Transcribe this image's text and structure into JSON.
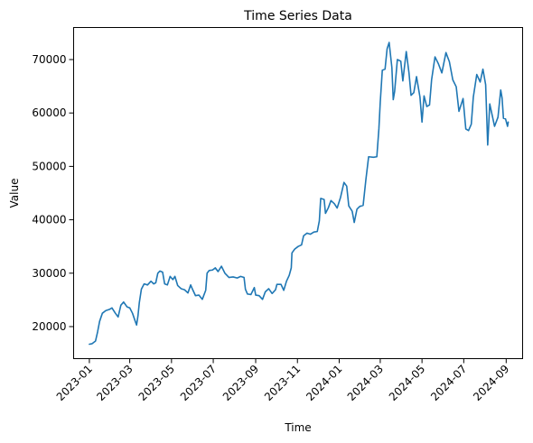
{
  "chart_data": {
    "type": "line",
    "title": "Time Series Data",
    "xlabel": "Time",
    "ylabel": "Value",
    "xlim": [
      "2022-12-09",
      "2024-09-25"
    ],
    "ylim": [
      14000,
      76000
    ],
    "x_ticks": [
      "2023-01",
      "2023-03",
      "2023-05",
      "2023-07",
      "2023-09",
      "2023-11",
      "2024-01",
      "2024-03",
      "2024-05",
      "2024-07",
      "2024-09"
    ],
    "y_ticks": [
      20000,
      30000,
      40000,
      50000,
      60000,
      70000
    ],
    "grid": false,
    "legend": "none",
    "color": "#1f77b4",
    "series": [
      {
        "points": [
          [
            "2023-01-01",
            16700
          ],
          [
            "2023-01-05",
            16800
          ],
          [
            "2023-01-10",
            17300
          ],
          [
            "2023-01-13",
            19000
          ],
          [
            "2023-01-16",
            21000
          ],
          [
            "2023-01-20",
            22500
          ],
          [
            "2023-01-25",
            23000
          ],
          [
            "2023-01-30",
            23200
          ],
          [
            "2023-02-03",
            23500
          ],
          [
            "2023-02-08",
            22500
          ],
          [
            "2023-02-12",
            21800
          ],
          [
            "2023-02-16",
            24000
          ],
          [
            "2023-02-20",
            24600
          ],
          [
            "2023-02-25",
            23700
          ],
          [
            "2023-03-01",
            23500
          ],
          [
            "2023-03-05",
            22500
          ],
          [
            "2023-03-09",
            21000
          ],
          [
            "2023-03-11",
            20300
          ],
          [
            "2023-03-13",
            22000
          ],
          [
            "2023-03-15",
            24500
          ],
          [
            "2023-03-18",
            27000
          ],
          [
            "2023-03-22",
            28000
          ],
          [
            "2023-03-27",
            27800
          ],
          [
            "2023-04-01",
            28500
          ],
          [
            "2023-04-05",
            28000
          ],
          [
            "2023-04-08",
            28200
          ],
          [
            "2023-04-11",
            30000
          ],
          [
            "2023-04-14",
            30400
          ],
          [
            "2023-04-18",
            30200
          ],
          [
            "2023-04-21",
            28000
          ],
          [
            "2023-04-25",
            27800
          ],
          [
            "2023-04-29",
            29400
          ],
          [
            "2023-05-03",
            28800
          ],
          [
            "2023-05-06",
            29400
          ],
          [
            "2023-05-10",
            27700
          ],
          [
            "2023-05-15",
            27100
          ],
          [
            "2023-05-20",
            26900
          ],
          [
            "2023-05-25",
            26300
          ],
          [
            "2023-05-29",
            27800
          ],
          [
            "2023-06-01",
            26900
          ],
          [
            "2023-06-05",
            25800
          ],
          [
            "2023-06-10",
            25900
          ],
          [
            "2023-06-15",
            25100
          ],
          [
            "2023-06-20",
            26800
          ],
          [
            "2023-06-22",
            30000
          ],
          [
            "2023-06-25",
            30500
          ],
          [
            "2023-06-30",
            30600
          ],
          [
            "2023-07-04",
            31000
          ],
          [
            "2023-07-08",
            30300
          ],
          [
            "2023-07-13",
            31300
          ],
          [
            "2023-07-18",
            30000
          ],
          [
            "2023-07-24",
            29200
          ],
          [
            "2023-07-30",
            29300
          ],
          [
            "2023-08-05",
            29100
          ],
          [
            "2023-08-10",
            29400
          ],
          [
            "2023-08-15",
            29200
          ],
          [
            "2023-08-17",
            27000
          ],
          [
            "2023-08-20",
            26100
          ],
          [
            "2023-08-25",
            26000
          ],
          [
            "2023-08-30",
            27300
          ],
          [
            "2023-09-01",
            25900
          ],
          [
            "2023-09-06",
            25800
          ],
          [
            "2023-09-11",
            25100
          ],
          [
            "2023-09-15",
            26500
          ],
          [
            "2023-09-20",
            27100
          ],
          [
            "2023-09-25",
            26200
          ],
          [
            "2023-09-30",
            26900
          ],
          [
            "2023-10-02",
            27900
          ],
          [
            "2023-10-08",
            27900
          ],
          [
            "2023-10-12",
            26800
          ],
          [
            "2023-10-16",
            28500
          ],
          [
            "2023-10-20",
            29600
          ],
          [
            "2023-10-23",
            31000
          ],
          [
            "2023-10-24",
            33800
          ],
          [
            "2023-10-28",
            34500
          ],
          [
            "2023-11-02",
            35000
          ],
          [
            "2023-11-07",
            35300
          ],
          [
            "2023-11-10",
            37000
          ],
          [
            "2023-11-15",
            37500
          ],
          [
            "2023-11-20",
            37300
          ],
          [
            "2023-11-25",
            37700
          ],
          [
            "2023-11-30",
            37800
          ],
          [
            "2023-12-03",
            39800
          ],
          [
            "2023-12-05",
            44000
          ],
          [
            "2023-12-10",
            43800
          ],
          [
            "2023-12-12",
            41200
          ],
          [
            "2023-12-16",
            42200
          ],
          [
            "2023-12-20",
            43600
          ],
          [
            "2023-12-25",
            43000
          ],
          [
            "2023-12-29",
            42200
          ],
          [
            "2024-01-03",
            44200
          ],
          [
            "2024-01-08",
            47000
          ],
          [
            "2024-01-12",
            46300
          ],
          [
            "2024-01-15",
            42600
          ],
          [
            "2024-01-20",
            41600
          ],
          [
            "2024-01-23",
            39500
          ],
          [
            "2024-01-27",
            42000
          ],
          [
            "2024-01-31",
            42500
          ],
          [
            "2024-02-05",
            42700
          ],
          [
            "2024-02-09",
            47500
          ],
          [
            "2024-02-13",
            51800
          ],
          [
            "2024-02-20",
            51700
          ],
          [
            "2024-02-25",
            51800
          ],
          [
            "2024-02-28",
            57000
          ],
          [
            "2024-03-01",
            62000
          ],
          [
            "2024-03-04",
            68000
          ],
          [
            "2024-03-08",
            68200
          ],
          [
            "2024-03-11",
            72000
          ],
          [
            "2024-03-14",
            73200
          ],
          [
            "2024-03-18",
            68500
          ],
          [
            "2024-03-20",
            62500
          ],
          [
            "2024-03-22",
            64000
          ],
          [
            "2024-03-26",
            70000
          ],
          [
            "2024-03-31",
            69700
          ],
          [
            "2024-04-03",
            66000
          ],
          [
            "2024-04-08",
            71500
          ],
          [
            "2024-04-12",
            67500
          ],
          [
            "2024-04-15",
            63300
          ],
          [
            "2024-04-19",
            63800
          ],
          [
            "2024-04-23",
            66800
          ],
          [
            "2024-04-28",
            63000
          ],
          [
            "2024-05-01",
            58300
          ],
          [
            "2024-05-04",
            63200
          ],
          [
            "2024-05-08",
            61200
          ],
          [
            "2024-05-12",
            61500
          ],
          [
            "2024-05-15",
            66200
          ],
          [
            "2024-05-20",
            70500
          ],
          [
            "2024-05-25",
            69200
          ],
          [
            "2024-05-30",
            67500
          ],
          [
            "2024-06-05",
            71300
          ],
          [
            "2024-06-10",
            69600
          ],
          [
            "2024-06-15",
            66200
          ],
          [
            "2024-06-20",
            64900
          ],
          [
            "2024-06-24",
            60300
          ],
          [
            "2024-06-30",
            62700
          ],
          [
            "2024-07-04",
            57000
          ],
          [
            "2024-07-08",
            56700
          ],
          [
            "2024-07-12",
            57900
          ],
          [
            "2024-07-15",
            63000
          ],
          [
            "2024-07-20",
            67200
          ],
          [
            "2024-07-25",
            65800
          ],
          [
            "2024-07-29",
            68200
          ],
          [
            "2024-08-02",
            65300
          ],
          [
            "2024-08-05",
            54000
          ],
          [
            "2024-08-08",
            61700
          ],
          [
            "2024-08-12",
            59300
          ],
          [
            "2024-08-15",
            57500
          ],
          [
            "2024-08-20",
            59200
          ],
          [
            "2024-08-24",
            64300
          ],
          [
            "2024-08-26",
            62800
          ],
          [
            "2024-08-28",
            59000
          ],
          [
            "2024-08-31",
            58900
          ],
          [
            "2024-09-03",
            57500
          ],
          [
            "2024-09-04",
            58300
          ]
        ]
      }
    ]
  }
}
